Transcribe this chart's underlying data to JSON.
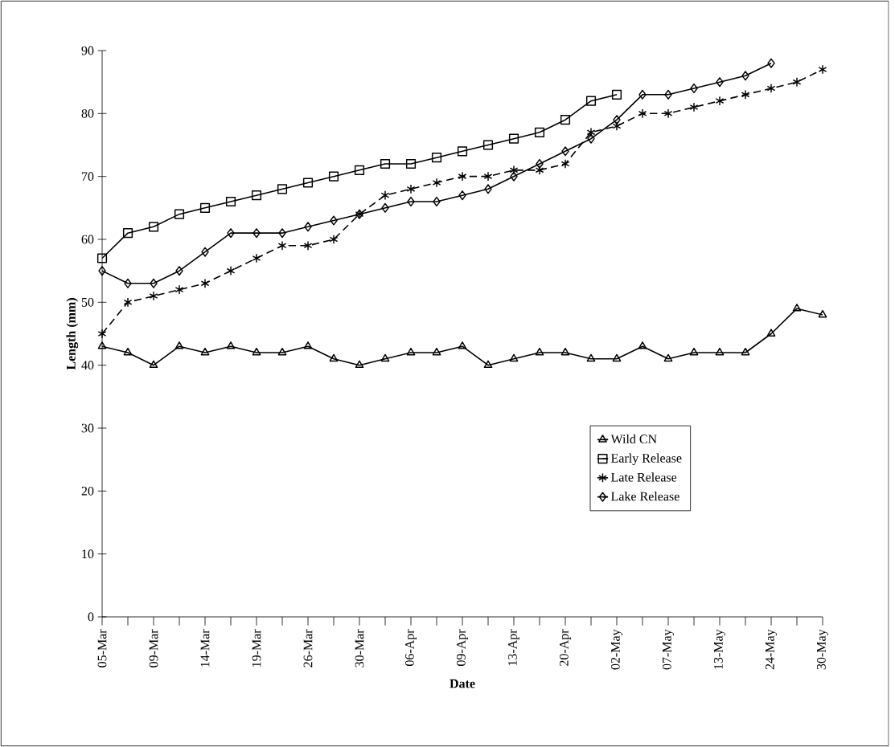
{
  "chart_data": {
    "type": "line",
    "xlabel": "Date",
    "ylabel": "Length (mm)",
    "categories": [
      "05-Mar",
      null,
      "09-Mar",
      null,
      "14-Mar",
      null,
      "19-Mar",
      null,
      "26-Mar",
      null,
      "30-Mar",
      null,
      "06-Apr",
      null,
      "09-Apr",
      null,
      "13-Apr",
      null,
      "20-Apr",
      null,
      "02-May",
      null,
      "07-May",
      null,
      "13-May",
      null,
      "24-May",
      null,
      "30-May"
    ],
    "series": [
      {
        "name": "Wild CN",
        "color": "#000000",
        "marker": "triangle",
        "line_style": "solid",
        "values": [
          43,
          42,
          40,
          43,
          42,
          43,
          42,
          42,
          43,
          41,
          40,
          41,
          42,
          42,
          43,
          40,
          41,
          42,
          42,
          41,
          41,
          43,
          41,
          42,
          42,
          42,
          45,
          49,
          48
        ]
      },
      {
        "name": "Early Release",
        "color": "#000000",
        "marker": "square",
        "line_style": "solid",
        "values": [
          57,
          61,
          62,
          64,
          65,
          66,
          67,
          68,
          69,
          70,
          71,
          72,
          72,
          73,
          74,
          75,
          76,
          77,
          79,
          82,
          83,
          null,
          null,
          null,
          null,
          null,
          null,
          null,
          null
        ]
      },
      {
        "name": "Late Release",
        "color": "#000000",
        "marker": "cross",
        "line_style": "dashed",
        "values": [
          45,
          50,
          51,
          52,
          53,
          55,
          57,
          59,
          59,
          60,
          64,
          67,
          68,
          69,
          70,
          70,
          71,
          71,
          72,
          77,
          78,
          80,
          80,
          81,
          82,
          83,
          84,
          85,
          87
        ]
      },
      {
        "name": "Lake Release",
        "color": "#000000",
        "marker": "diamond",
        "line_style": "solid",
        "values": [
          55,
          53,
          53,
          55,
          58,
          61,
          61,
          61,
          62,
          63,
          64,
          65,
          66,
          66,
          67,
          68,
          70,
          72,
          74,
          76,
          79,
          83,
          83,
          84,
          85,
          86,
          88,
          null,
          null
        ]
      }
    ],
    "ylim": [
      0,
      90
    ],
    "yticks": [
      0,
      10,
      20,
      30,
      40,
      50,
      60,
      70,
      80,
      90
    ],
    "grid": false,
    "legend": "bottom right"
  }
}
